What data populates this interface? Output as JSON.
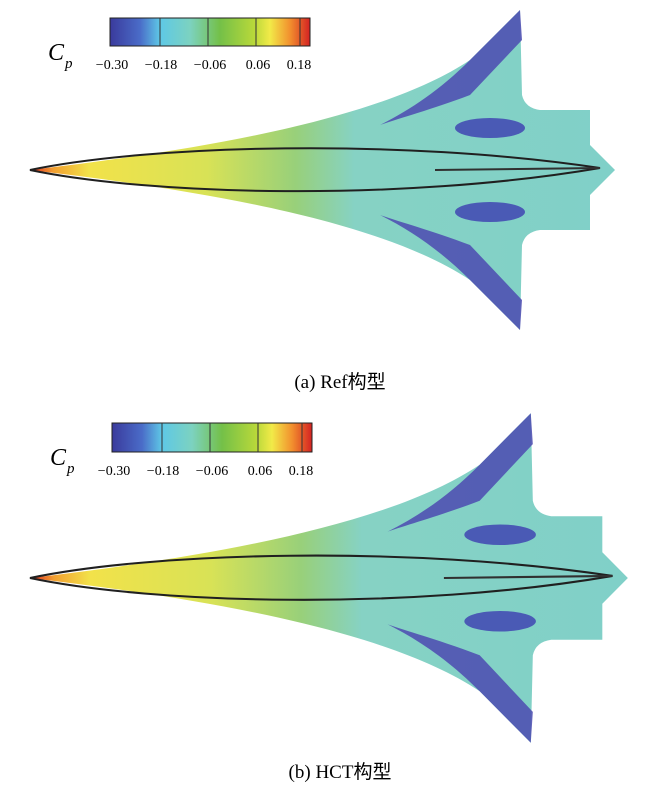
{
  "panels": [
    {
      "colorbar": {
        "label": "C",
        "subscript": "p",
        "ticks": [
          "−0.30",
          "−0.18",
          "−0.06",
          "0.06",
          "0.18"
        ]
      },
      "caption": "(a) Ref构型"
    },
    {
      "colorbar": {
        "label": "C",
        "subscript": "p",
        "ticks": [
          "−0.30",
          "−0.18",
          "−0.06",
          "0.06",
          "0.18"
        ]
      },
      "caption": "(b) HCT构型"
    }
  ]
}
